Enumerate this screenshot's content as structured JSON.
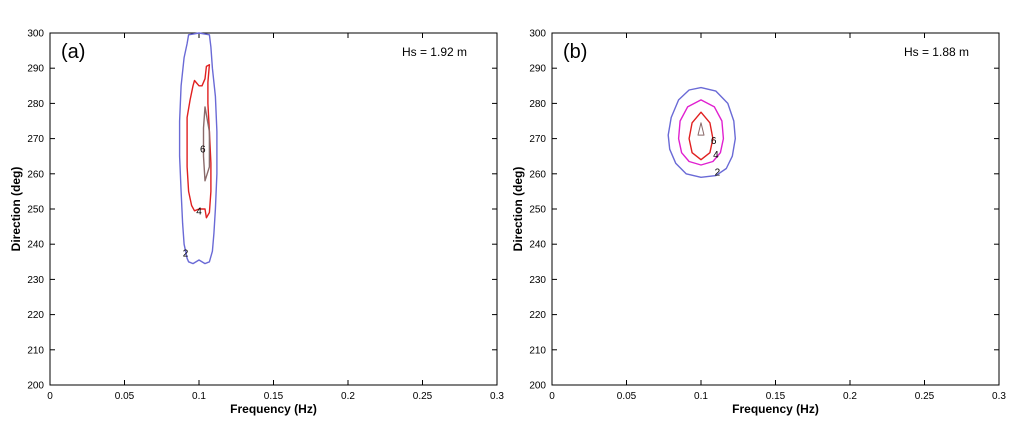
{
  "chart_data": [
    {
      "type": "contour",
      "panel_label": "(a)",
      "annotation": "Hs = 1.92 m",
      "xlabel": "Frequency (Hz)",
      "ylabel": "Direction (deg)",
      "xlim": [
        0,
        0.3
      ],
      "ylim": [
        200,
        300
      ],
      "xticks": [
        0,
        0.05,
        0.1,
        0.15,
        0.2,
        0.25,
        0.3
      ],
      "xtick_labels": [
        "0",
        "0.05",
        "0.1",
        "0.15",
        "0.2",
        "0.25",
        "0.3"
      ],
      "yticks": [
        200,
        210,
        220,
        230,
        240,
        250,
        260,
        270,
        280,
        290,
        300
      ],
      "ytick_labels": [
        "200",
        "210",
        "220",
        "230",
        "240",
        "250",
        "260",
        "270",
        "280",
        "290",
        "300"
      ],
      "contours": [
        {
          "level": "2",
          "color": "#6a6ad6",
          "points": [
            [
              0.093,
              299.5
            ],
            [
              0.1,
              300
            ],
            [
              0.107,
              299.5
            ],
            [
              0.108,
              296
            ],
            [
              0.109,
              290
            ],
            [
              0.111,
              282
            ],
            [
              0.112,
              272
            ],
            [
              0.112,
              260
            ],
            [
              0.111,
              250
            ],
            [
              0.11,
              243
            ],
            [
              0.109,
              238
            ],
            [
              0.107,
              235
            ],
            [
              0.104,
              234.5
            ],
            [
              0.1,
              235.5
            ],
            [
              0.096,
              234.5
            ],
            [
              0.093,
              235
            ],
            [
              0.092,
              236
            ],
            [
              0.09,
              240
            ],
            [
              0.089,
              246
            ],
            [
              0.088,
              255
            ],
            [
              0.087,
              265
            ],
            [
              0.087,
              275
            ],
            [
              0.088,
              285
            ],
            [
              0.09,
              293
            ],
            [
              0.092,
              297
            ]
          ],
          "label_pos": [
            0.091,
            237.5
          ]
        },
        {
          "level": "4",
          "color": "#e02020",
          "points": [
            [
              0.107,
              291
            ],
            [
              0.106,
              286
            ],
            [
              0.106,
              280
            ],
            [
              0.107,
              272
            ],
            [
              0.108,
              263
            ],
            [
              0.108,
              255
            ],
            [
              0.107,
              249
            ],
            [
              0.105,
              247.5
            ],
            [
              0.104,
              250
            ],
            [
              0.1,
              250
            ],
            [
              0.097,
              249.5
            ],
            [
              0.095,
              251
            ],
            [
              0.093,
              255
            ],
            [
              0.092,
              262
            ],
            [
              0.092,
              270
            ],
            [
              0.092,
              276
            ],
            [
              0.094,
              281
            ],
            [
              0.096,
              285
            ],
            [
              0.097,
              286.5
            ],
            [
              0.1,
              285
            ],
            [
              0.102,
              285
            ],
            [
              0.104,
              287
            ],
            [
              0.105,
              290.5
            ]
          ],
          "label_pos": [
            0.1,
            249.5
          ]
        },
        {
          "level": "6",
          "color": "#8a6a6a",
          "points": [
            [
              0.104,
              279
            ],
            [
              0.107,
              272
            ],
            [
              0.107,
              262
            ],
            [
              0.104,
              258
            ],
            [
              0.103,
              265
            ],
            [
              0.103,
              273
            ]
          ],
          "label_pos": [
            0.1025,
            267
          ]
        }
      ]
    },
    {
      "type": "contour",
      "panel_label": "(b)",
      "annotation": "Hs = 1.88 m",
      "xlabel": "Frequency (Hz)",
      "ylabel": "Direction (deg)",
      "xlim": [
        0,
        0.3
      ],
      "ylim": [
        200,
        300
      ],
      "xticks": [
        0,
        0.05,
        0.1,
        0.15,
        0.2,
        0.25,
        0.3
      ],
      "xtick_labels": [
        "0",
        "0.05",
        "0.1",
        "0.15",
        "0.2",
        "0.25",
        "0.3"
      ],
      "yticks": [
        200,
        210,
        220,
        230,
        240,
        250,
        260,
        270,
        280,
        290,
        300
      ],
      "ytick_labels": [
        "200",
        "210",
        "220",
        "230",
        "240",
        "250",
        "260",
        "270",
        "280",
        "290",
        "300"
      ],
      "contours": [
        {
          "level": "2",
          "color": "#6a6ad6",
          "points": [
            [
              0.1,
              284.5
            ],
            [
              0.11,
              283.5
            ],
            [
              0.118,
              280
            ],
            [
              0.122,
              275
            ],
            [
              0.123,
              270
            ],
            [
              0.121,
              265
            ],
            [
              0.117,
              261.5
            ],
            [
              0.11,
              259.5
            ],
            [
              0.1,
              259
            ],
            [
              0.09,
              260
            ],
            [
              0.083,
              263
            ],
            [
              0.079,
              267
            ],
            [
              0.078,
              271
            ],
            [
              0.08,
              276
            ],
            [
              0.085,
              281
            ],
            [
              0.092,
              283.8
            ]
          ],
          "label_pos": [
            0.111,
            260.5
          ]
        },
        {
          "level": "4",
          "color": "#e020d0",
          "points": [
            [
              0.1,
              281
            ],
            [
              0.109,
              279
            ],
            [
              0.114,
              275
            ],
            [
              0.115,
              270
            ],
            [
              0.113,
              266
            ],
            [
              0.108,
              263.5
            ],
            [
              0.1,
              262.5
            ],
            [
              0.092,
              263.5
            ],
            [
              0.087,
              266
            ],
            [
              0.085,
              270
            ],
            [
              0.086,
              275
            ],
            [
              0.091,
              279
            ]
          ],
          "label_pos": [
            0.11,
            265.5
          ]
        },
        {
          "level": "6",
          "color": "#e02020",
          "points": [
            [
              0.1,
              277.5
            ],
            [
              0.106,
              274.5
            ],
            [
              0.108,
              270
            ],
            [
              0.106,
              266
            ],
            [
              0.1,
              264
            ],
            [
              0.094,
              266
            ],
            [
              0.092,
              270
            ],
            [
              0.094,
              274.5
            ]
          ],
          "label_pos": [
            0.1085,
            269.5
          ]
        },
        {
          "level": "",
          "color": "#8a6a6a",
          "points": [
            [
              0.1,
              274.5
            ],
            [
              0.102,
              271
            ],
            [
              0.098,
              271
            ]
          ],
          "label_pos": null
        }
      ]
    }
  ]
}
